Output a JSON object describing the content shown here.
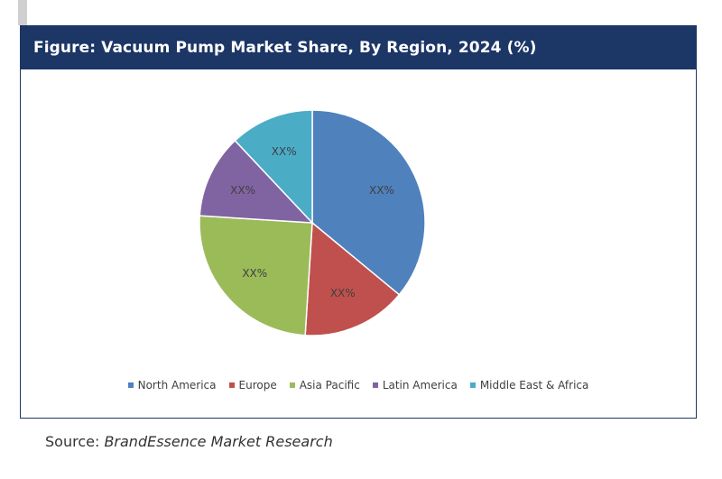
{
  "title": "Figure: Vacuum Pump Market Share, By Region, 2024 (%)",
  "source": {
    "label": "Source:",
    "name": "BrandEssence Market Research"
  },
  "chart_data": {
    "type": "pie",
    "title": "Figure: Vacuum Pump Market Share, By Region, 2024 (%)",
    "slices": [
      {
        "name": "North America",
        "value": 36,
        "label": "XX%",
        "color": "#4f81bd"
      },
      {
        "name": "Europe",
        "value": 15,
        "label": "XX%",
        "color": "#c0504d"
      },
      {
        "name": "Asia Pacific",
        "value": 25,
        "label": "XX%",
        "color": "#9bbb59"
      },
      {
        "name": "Latin America",
        "value": 12,
        "label": "XX%",
        "color": "#8064a2"
      },
      {
        "name": "Middle East & Africa",
        "value": 12,
        "label": "XX%",
        "color": "#4bacc6"
      }
    ],
    "start_angle_deg": 0,
    "direction": "clockwise",
    "legend_position": "bottom"
  }
}
